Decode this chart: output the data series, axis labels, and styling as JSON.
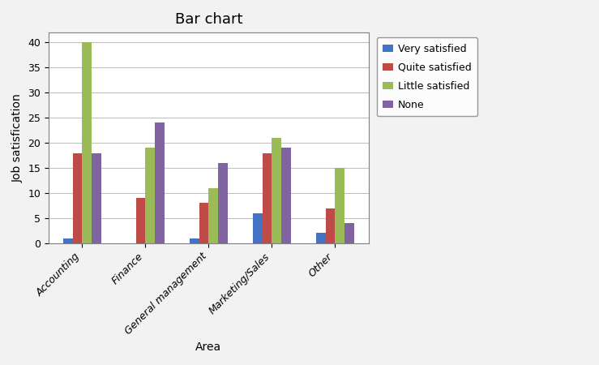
{
  "title": "Bar chart",
  "xlabel": "Area",
  "ylabel": "Job satisfication",
  "categories": [
    "Accounting",
    "Finance",
    "General management",
    "Marketing/Sales",
    "Other"
  ],
  "series": [
    {
      "label": "Very satisfied",
      "color": "#4472c4",
      "values": [
        1,
        0,
        1,
        6,
        2
      ]
    },
    {
      "label": "Quite satisfied",
      "color": "#be4b48",
      "values": [
        18,
        9,
        8,
        18,
        7
      ]
    },
    {
      "label": "Little satisfied",
      "color": "#9bbb59",
      "values": [
        40,
        19,
        11,
        21,
        15
      ]
    },
    {
      "label": "None",
      "color": "#8064a2",
      "values": [
        18,
        24,
        16,
        19,
        4
      ]
    }
  ],
  "ylim": [
    0,
    42
  ],
  "yticks": [
    0,
    5,
    10,
    15,
    20,
    25,
    30,
    35,
    40
  ],
  "figure_bg_color": "#f2f2f2",
  "plot_bg_color": "#ffffff",
  "grid_color": "#c0c0c0",
  "bar_width": 0.15,
  "title_fontsize": 13,
  "axis_label_fontsize": 10,
  "tick_fontsize": 9,
  "legend_fontsize": 9,
  "figsize": [
    7.39,
    4.5
  ],
  "dpi": 100
}
